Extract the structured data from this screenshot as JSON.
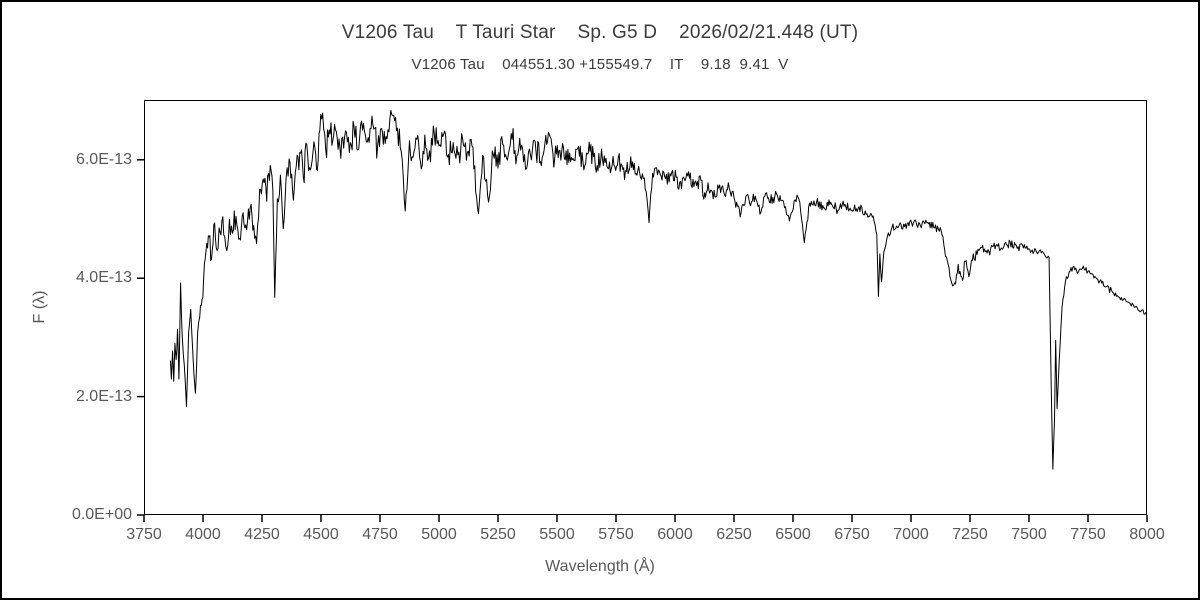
{
  "page": {
    "background": "#ffffff",
    "frame_color": "#000000"
  },
  "header": {
    "title": "V1206 Tau    T Tauri Star    Sp. G5 D    2026/02/21.448 (UT)",
    "subtitle": "V1206 Tau    044551.30 +155549.7    IT    9.18  9.41  V"
  },
  "chart_data": {
    "type": "line",
    "title": "V1206 Tau    T Tauri Star    Sp. G5 D    2026/02/21.448 (UT)",
    "subtitle": "V1206 Tau    044551.30 +155549.7    IT    9.18  9.41  V",
    "xlabel": "Wavelength (Å)",
    "ylabel": "F (λ)",
    "xlim": [
      3750,
      8000
    ],
    "ylim_1e13": [
      0,
      7.01
    ],
    "grid": false,
    "legend": "none",
    "axis_color": "#000000",
    "tick_text_color": "#595959",
    "x_ticks": [
      3750,
      4000,
      4250,
      4500,
      4750,
      5000,
      5250,
      5500,
      5750,
      6000,
      6250,
      6500,
      6750,
      7000,
      7250,
      7500,
      7750,
      8000
    ],
    "y_ticks": [
      {
        "value_1e13": 0,
        "label": "0.0E+00"
      },
      {
        "value_1e13": 2,
        "label": "2.0E-13"
      },
      {
        "value_1e13": 4,
        "label": "4.0E-13"
      },
      {
        "value_1e13": 6,
        "label": "6.0E-13"
      }
    ],
    "series": [
      {
        "name": "V1206 Tau spectrum",
        "color": "#000000",
        "points_lambda_flux1e13_noise": [
          [
            3862,
            2.6,
            0.22
          ],
          [
            3866,
            2.35,
            0.22
          ],
          [
            3871,
            2.75,
            0.22
          ],
          [
            3876,
            2.3,
            0.22
          ],
          [
            3881,
            2.95,
            0.2
          ],
          [
            3886,
            2.6,
            0.22
          ],
          [
            3892,
            3.15,
            0.2
          ],
          [
            3898,
            2.3,
            0.15
          ],
          [
            3905,
            3.9,
            0.12
          ],
          [
            3912,
            3.0,
            0.15
          ],
          [
            3921,
            2.55,
            0.12
          ],
          [
            3930,
            1.85,
            0.08
          ],
          [
            3939,
            3.05,
            0.1
          ],
          [
            3948,
            3.5,
            0.1
          ],
          [
            3958,
            2.65,
            0.08
          ],
          [
            3968,
            2.05,
            0.08
          ],
          [
            3977,
            3.05,
            0.1
          ],
          [
            3986,
            3.35,
            0.12
          ],
          [
            3996,
            3.6,
            0.15
          ],
          [
            4006,
            4.25,
            0.15
          ],
          [
            4016,
            4.55,
            0.18
          ],
          [
            4026,
            4.7,
            0.2
          ],
          [
            4036,
            4.35,
            0.2
          ],
          [
            4046,
            4.9,
            0.2
          ],
          [
            4056,
            4.5,
            0.2
          ],
          [
            4068,
            4.8,
            0.2
          ],
          [
            4080,
            4.95,
            0.2
          ],
          [
            4092,
            4.7,
            0.18
          ],
          [
            4101,
            4.45,
            0.12
          ],
          [
            4112,
            4.95,
            0.18
          ],
          [
            4125,
            4.8,
            0.2
          ],
          [
            4140,
            5.1,
            0.22
          ],
          [
            4155,
            4.7,
            0.22
          ],
          [
            4170,
            5.15,
            0.22
          ],
          [
            4185,
            4.85,
            0.22
          ],
          [
            4200,
            5.2,
            0.22
          ],
          [
            4215,
            4.9,
            0.2
          ],
          [
            4227,
            4.6,
            0.15
          ],
          [
            4240,
            5.45,
            0.2
          ],
          [
            4255,
            5.7,
            0.22
          ],
          [
            4270,
            5.35,
            0.25
          ],
          [
            4285,
            5.9,
            0.2
          ],
          [
            4296,
            5.45,
            0.15
          ],
          [
            4304,
            3.68,
            0.08
          ],
          [
            4315,
            5.3,
            0.15
          ],
          [
            4328,
            5.7,
            0.2
          ],
          [
            4340,
            4.85,
            0.15
          ],
          [
            4352,
            5.75,
            0.22
          ],
          [
            4365,
            6.0,
            0.22
          ],
          [
            4383,
            5.35,
            0.2
          ],
          [
            4395,
            5.95,
            0.25
          ],
          [
            4410,
            6.1,
            0.25
          ],
          [
            4425,
            5.75,
            0.25
          ],
          [
            4440,
            6.2,
            0.25
          ],
          [
            4455,
            5.9,
            0.25
          ],
          [
            4470,
            6.35,
            0.25
          ],
          [
            4481,
            5.8,
            0.2
          ],
          [
            4495,
            6.55,
            0.22
          ],
          [
            4507,
            6.8,
            0.15
          ],
          [
            4520,
            6.1,
            0.25
          ],
          [
            4535,
            6.5,
            0.25
          ],
          [
            4550,
            6.3,
            0.25
          ],
          [
            4565,
            6.55,
            0.25
          ],
          [
            4580,
            6.2,
            0.25
          ],
          [
            4600,
            6.45,
            0.25
          ],
          [
            4620,
            6.15,
            0.25
          ],
          [
            4640,
            6.5,
            0.25
          ],
          [
            4660,
            6.25,
            0.25
          ],
          [
            4680,
            6.65,
            0.2
          ],
          [
            4700,
            6.35,
            0.25
          ],
          [
            4720,
            6.55,
            0.25
          ],
          [
            4740,
            6.2,
            0.25
          ],
          [
            4760,
            6.5,
            0.25
          ],
          [
            4780,
            6.3,
            0.25
          ],
          [
            4800,
            6.8,
            0.18
          ],
          [
            4820,
            6.45,
            0.25
          ],
          [
            4840,
            6.2,
            0.2
          ],
          [
            4857,
            5.15,
            0.1
          ],
          [
            4875,
            6.3,
            0.2
          ],
          [
            4890,
            6.1,
            0.25
          ],
          [
            4910,
            6.45,
            0.25
          ],
          [
            4925,
            5.9,
            0.2
          ],
          [
            4940,
            6.35,
            0.25
          ],
          [
            4960,
            6.1,
            0.25
          ],
          [
            4980,
            6.4,
            0.25
          ],
          [
            5000,
            6.2,
            0.25
          ],
          [
            5020,
            6.45,
            0.22
          ],
          [
            5040,
            6.1,
            0.25
          ],
          [
            5060,
            6.35,
            0.22
          ],
          [
            5080,
            6.05,
            0.25
          ],
          [
            5100,
            6.3,
            0.22
          ],
          [
            5120,
            6.1,
            0.22
          ],
          [
            5140,
            6.25,
            0.2
          ],
          [
            5167,
            5.1,
            0.1
          ],
          [
            5185,
            6.05,
            0.2
          ],
          [
            5210,
            5.3,
            0.12
          ],
          [
            5230,
            6.15,
            0.2
          ],
          [
            5250,
            5.9,
            0.22
          ],
          [
            5270,
            6.3,
            0.2
          ],
          [
            5290,
            6.0,
            0.22
          ],
          [
            5310,
            6.4,
            0.2
          ],
          [
            5330,
            6.05,
            0.22
          ],
          [
            5350,
            6.25,
            0.2
          ],
          [
            5375,
            5.95,
            0.22
          ],
          [
            5400,
            6.3,
            0.2
          ],
          [
            5430,
            6.0,
            0.22
          ],
          [
            5460,
            6.35,
            0.2
          ],
          [
            5490,
            6.05,
            0.22
          ],
          [
            5520,
            6.2,
            0.2
          ],
          [
            5550,
            5.95,
            0.2
          ],
          [
            5580,
            6.2,
            0.2
          ],
          [
            5610,
            5.95,
            0.2
          ],
          [
            5640,
            6.15,
            0.18
          ],
          [
            5670,
            5.9,
            0.18
          ],
          [
            5700,
            6.1,
            0.18
          ],
          [
            5730,
            5.85,
            0.18
          ],
          [
            5760,
            6.0,
            0.16
          ],
          [
            5790,
            5.8,
            0.16
          ],
          [
            5820,
            5.95,
            0.15
          ],
          [
            5850,
            5.8,
            0.13
          ],
          [
            5870,
            5.7,
            0.1
          ],
          [
            5890,
            4.95,
            0.06
          ],
          [
            5905,
            5.75,
            0.12
          ],
          [
            5930,
            5.85,
            0.13
          ],
          [
            5960,
            5.65,
            0.13
          ],
          [
            5990,
            5.8,
            0.13
          ],
          [
            6020,
            5.6,
            0.13
          ],
          [
            6050,
            5.75,
            0.13
          ],
          [
            6080,
            5.55,
            0.13
          ],
          [
            6110,
            5.65,
            0.12
          ],
          [
            6122,
            5.35,
            0.08
          ],
          [
            6140,
            5.6,
            0.12
          ],
          [
            6162,
            5.35,
            0.1
          ],
          [
            6185,
            5.55,
            0.12
          ],
          [
            6210,
            5.4,
            0.12
          ],
          [
            6230,
            5.55,
            0.1
          ],
          [
            6250,
            5.35,
            0.1
          ],
          [
            6280,
            5.1,
            0.1
          ],
          [
            6300,
            5.4,
            0.1
          ],
          [
            6320,
            5.25,
            0.1
          ],
          [
            6340,
            5.4,
            0.09
          ],
          [
            6360,
            5.1,
            0.08
          ],
          [
            6380,
            5.4,
            0.09
          ],
          [
            6400,
            5.3,
            0.09
          ],
          [
            6430,
            5.4,
            0.09
          ],
          [
            6460,
            5.3,
            0.08
          ],
          [
            6485,
            4.95,
            0.06
          ],
          [
            6505,
            5.3,
            0.08
          ],
          [
            6525,
            5.35,
            0.07
          ],
          [
            6548,
            4.6,
            0.04
          ],
          [
            6570,
            5.25,
            0.07
          ],
          [
            6600,
            5.3,
            0.08
          ],
          [
            6630,
            5.2,
            0.08
          ],
          [
            6660,
            5.3,
            0.08
          ],
          [
            6690,
            5.15,
            0.08
          ],
          [
            6720,
            5.25,
            0.08
          ],
          [
            6750,
            5.15,
            0.07
          ],
          [
            6780,
            5.2,
            0.07
          ],
          [
            6810,
            5.1,
            0.07
          ],
          [
            6840,
            5.05,
            0.05
          ],
          [
            6855,
            4.75,
            0.04
          ],
          [
            6862,
            3.7,
            0.03
          ],
          [
            6868,
            4.4,
            0.04
          ],
          [
            6875,
            3.95,
            0.04
          ],
          [
            6885,
            4.45,
            0.04
          ],
          [
            6900,
            4.7,
            0.05
          ],
          [
            6920,
            4.85,
            0.06
          ],
          [
            6950,
            4.9,
            0.07
          ],
          [
            6980,
            4.85,
            0.07
          ],
          [
            7010,
            4.95,
            0.07
          ],
          [
            7040,
            4.9,
            0.07
          ],
          [
            7070,
            4.95,
            0.07
          ],
          [
            7100,
            4.85,
            0.07
          ],
          [
            7128,
            4.8,
            0.05
          ],
          [
            7150,
            4.35,
            0.07
          ],
          [
            7172,
            3.95,
            0.08
          ],
          [
            7185,
            3.9,
            0.09
          ],
          [
            7200,
            4.2,
            0.12
          ],
          [
            7215,
            4.0,
            0.12
          ],
          [
            7230,
            4.25,
            0.12
          ],
          [
            7245,
            4.05,
            0.12
          ],
          [
            7260,
            4.3,
            0.1
          ],
          [
            7280,
            4.4,
            0.09
          ],
          [
            7300,
            4.5,
            0.07
          ],
          [
            7330,
            4.45,
            0.07
          ],
          [
            7360,
            4.55,
            0.07
          ],
          [
            7390,
            4.5,
            0.07
          ],
          [
            7420,
            4.6,
            0.07
          ],
          [
            7450,
            4.5,
            0.07
          ],
          [
            7480,
            4.55,
            0.06
          ],
          [
            7510,
            4.45,
            0.06
          ],
          [
            7540,
            4.45,
            0.05
          ],
          [
            7565,
            4.4,
            0.04
          ],
          [
            7585,
            4.35,
            0.03
          ],
          [
            7594,
            2.2,
            0.02
          ],
          [
            7601,
            0.78,
            0.02
          ],
          [
            7608,
            1.6,
            0.02
          ],
          [
            7613,
            2.95,
            0.02
          ],
          [
            7619,
            1.8,
            0.02
          ],
          [
            7628,
            2.6,
            0.03
          ],
          [
            7640,
            3.5,
            0.03
          ],
          [
            7655,
            3.95,
            0.04
          ],
          [
            7670,
            4.1,
            0.05
          ],
          [
            7690,
            4.2,
            0.06
          ],
          [
            7710,
            4.1,
            0.06
          ],
          [
            7730,
            4.2,
            0.06
          ],
          [
            7750,
            4.1,
            0.06
          ],
          [
            7775,
            4.0,
            0.06
          ],
          [
            7800,
            3.95,
            0.06
          ],
          [
            7825,
            3.85,
            0.06
          ],
          [
            7850,
            3.8,
            0.06
          ],
          [
            7875,
            3.7,
            0.06
          ],
          [
            7900,
            3.65,
            0.06
          ],
          [
            7925,
            3.6,
            0.05
          ],
          [
            7950,
            3.5,
            0.05
          ],
          [
            7975,
            3.45,
            0.05
          ],
          [
            8000,
            3.42,
            0.04
          ]
        ]
      }
    ]
  }
}
